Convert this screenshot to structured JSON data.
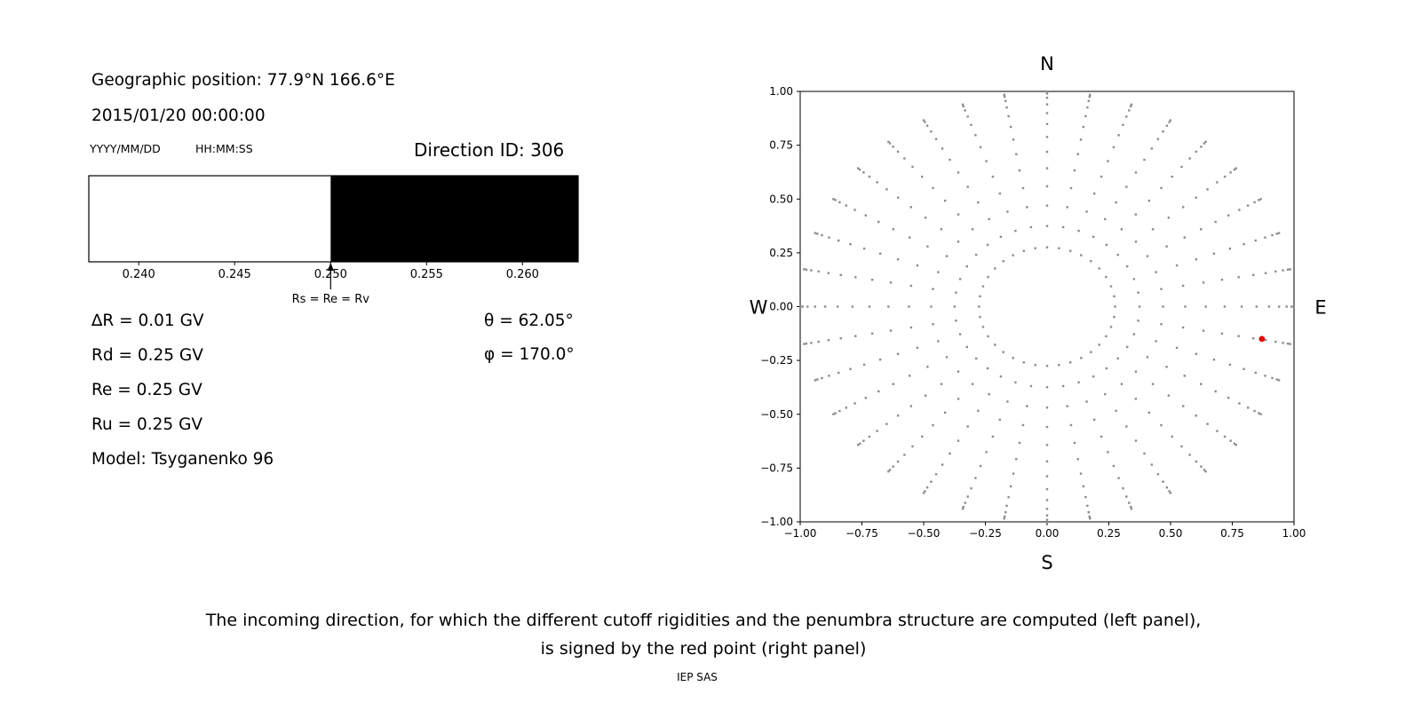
{
  "window": {
    "background": "#ffffff"
  },
  "info": {
    "geo_position": "Geographic position: 77.9°N 166.6°E",
    "datetime": "2015/01/20 00:00:00",
    "date_format_label": "YYYY/MM/DD",
    "time_format_label": "HH:MM:SS",
    "direction_id": "Direction ID: 306",
    "params": [
      "∆R = 0.01 GV",
      "Rd = 0.25 GV",
      "Re = 0.25 GV",
      "Ru = 0.25 GV",
      "Model: Tsyganenko 96"
    ],
    "angles": [
      "θ = 62.05°",
      "φ = 170.0°"
    ]
  },
  "caption": {
    "line1": "The incoming direction, for which the different cutoff rigidities and the penumbra structure are computed (left panel),",
    "line2": "is signed by the red point (right panel)",
    "credit": "IEP SAS"
  },
  "chart_data": [
    {
      "id": "penumbra-structure",
      "type": "bar",
      "title": "",
      "xlim": [
        0.2374,
        0.2629
      ],
      "xticks": [
        0.24,
        0.245,
        0.25,
        0.255,
        0.26
      ],
      "xtick_labels": [
        "0.240",
        "0.245",
        "0.250",
        "0.255",
        "0.260"
      ],
      "regions": [
        {
          "from": 0.2374,
          "to": 0.25,
          "color": "#ffffff",
          "meaning": "allowed rigidities (white)"
        },
        {
          "from": 0.25,
          "to": 0.2629,
          "color": "#000000",
          "meaning": "forbidden rigidities (black)"
        }
      ],
      "marker": {
        "x": 0.25,
        "label": "Rs = Re = Rv"
      },
      "values_gv": {
        "delta_R": 0.01,
        "Rd": 0.25,
        "Re": 0.25,
        "Ru": 0.25
      }
    },
    {
      "id": "incoming-directions",
      "type": "scatter",
      "title": "",
      "xlim": [
        -1.0,
        1.0
      ],
      "ylim": [
        -1.0,
        1.0
      ],
      "xticks": [
        -1.0,
        -0.75,
        -0.5,
        -0.25,
        0.0,
        0.25,
        0.5,
        0.75,
        1.0
      ],
      "yticks": [
        -1.0,
        -0.75,
        -0.5,
        -0.25,
        0.0,
        0.25,
        0.5,
        0.75,
        1.0
      ],
      "xtick_labels": [
        "−1.00",
        "−0.75",
        "−0.50",
        "−0.25",
        "0.00",
        "0.25",
        "0.50",
        "0.75",
        "1.00"
      ],
      "ytick_labels": [
        "−1.00",
        "−0.75",
        "−0.50",
        "−0.25",
        "0.00",
        "0.25",
        "0.50",
        "0.75",
        "1.00"
      ],
      "compass": {
        "top": "N",
        "bottom": "S",
        "left": "W",
        "right": "E"
      },
      "grid_dots": {
        "azimuth_deg_start": 0,
        "azimuth_deg_step": 10,
        "azimuth_count": 36,
        "zenith_deg_start": 16,
        "zenith_deg_step": 6,
        "zenith_deg_end": 88,
        "radius_rule": "sin(zenith)",
        "color": "#8c8c8c"
      },
      "red_point": {
        "x": 0.87,
        "y": -0.15,
        "color": "#e50000",
        "meaning": "selected incoming direction (ID 306)"
      }
    }
  ]
}
